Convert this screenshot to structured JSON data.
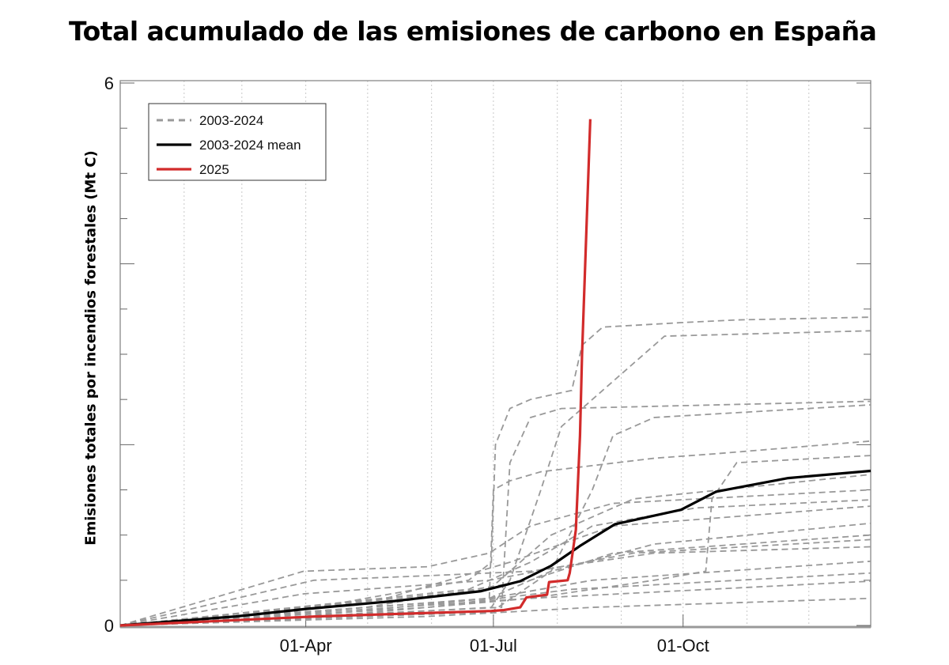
{
  "chart_data": {
    "type": "line",
    "title": "Total acumulado de las emisiones de carbono en España",
    "xlabel": "",
    "ylabel": "Emisiones totales por incendios forestales (Mt C)",
    "x_unit": "day of year",
    "xlim": [
      1,
      365
    ],
    "ylim": [
      0,
      6
    ],
    "y_tick_labels": [
      {
        "value": 6,
        "label": "6"
      },
      {
        "value": 0,
        "label": "0"
      }
    ],
    "x_ticks": [
      {
        "day": 91,
        "label": "01-Apr"
      },
      {
        "day": 182,
        "label": "01-Jul"
      },
      {
        "day": 274,
        "label": "01-Oct"
      }
    ],
    "grid": "vertical dotted monthly",
    "legend_position": "top-left",
    "legend": [
      {
        "label": "2003-2024",
        "style": "dashed",
        "color": "#999999"
      },
      {
        "label": "2003-2024 mean",
        "style": "solid",
        "color": "#000000"
      },
      {
        "label": "2025",
        "style": "solid",
        "color": "#d22b2b"
      }
    ],
    "series_2025": {
      "color": "#d22b2b",
      "points": [
        [
          1,
          0
        ],
        [
          96,
          0.1
        ],
        [
          181,
          0.16
        ],
        [
          187,
          0.17
        ],
        [
          195,
          0.2
        ],
        [
          198,
          0.31
        ],
        [
          208,
          0.34
        ],
        [
          209,
          0.48
        ],
        [
          218,
          0.5
        ],
        [
          219,
          0.58
        ],
        [
          222,
          1.06
        ],
        [
          224,
          2.1
        ],
        [
          225,
          3.0
        ],
        [
          227,
          4.3
        ],
        [
          229,
          5.6
        ]
      ]
    },
    "series_mean": {
      "color": "#000000",
      "points": [
        [
          1,
          0
        ],
        [
          57,
          0.1
        ],
        [
          90,
          0.18
        ],
        [
          134,
          0.27
        ],
        [
          176,
          0.38
        ],
        [
          195,
          0.49
        ],
        [
          210,
          0.66
        ],
        [
          224,
          0.88
        ],
        [
          241,
          1.12
        ],
        [
          273,
          1.28
        ],
        [
          290,
          1.48
        ],
        [
          325,
          1.63
        ],
        [
          365,
          1.71
        ]
      ]
    },
    "series_years": {
      "color": "#999999",
      "lines": [
        [
          [
            1,
            0
          ],
          [
            60,
            0.05
          ],
          [
            120,
            0.3
          ],
          [
            170,
            0.5
          ],
          [
            181,
            0.7
          ],
          [
            183,
            2.0
          ],
          [
            190,
            2.4
          ],
          [
            200,
            2.5
          ],
          [
            220,
            2.6
          ],
          [
            225,
            3.1
          ],
          [
            235,
            3.3
          ],
          [
            273,
            3.35
          ],
          [
            300,
            3.38
          ],
          [
            365,
            3.41
          ]
        ],
        [
          [
            1,
            0
          ],
          [
            100,
            0.1
          ],
          [
            181,
            0.2
          ],
          [
            190,
            0.5
          ],
          [
            205,
            1.5
          ],
          [
            215,
            2.2
          ],
          [
            235,
            2.6
          ],
          [
            255,
            3.0
          ],
          [
            265,
            3.2
          ],
          [
            365,
            3.26
          ]
        ],
        [
          [
            1,
            0
          ],
          [
            90,
            0.1
          ],
          [
            186,
            0.2
          ],
          [
            190,
            1.8
          ],
          [
            200,
            2.3
          ],
          [
            215,
            2.4
          ],
          [
            365,
            2.48
          ]
        ],
        [
          [
            1,
            0
          ],
          [
            181,
            0.15
          ],
          [
            210,
            0.6
          ],
          [
            230,
            1.5
          ],
          [
            240,
            2.1
          ],
          [
            260,
            2.3
          ],
          [
            365,
            2.44
          ]
        ],
        [
          [
            1,
            0
          ],
          [
            90,
            0.1
          ],
          [
            180,
            0.3
          ],
          [
            182,
            1.5
          ],
          [
            190,
            1.6
          ],
          [
            205,
            1.7
          ],
          [
            260,
            1.85
          ],
          [
            290,
            1.9
          ],
          [
            365,
            2.04
          ]
        ],
        [
          [
            1,
            0
          ],
          [
            200,
            0.3
          ],
          [
            260,
            0.5
          ],
          [
            285,
            0.6
          ],
          [
            288,
            1.4
          ],
          [
            300,
            1.8
          ],
          [
            365,
            1.88
          ]
        ],
        [
          [
            1,
            0
          ],
          [
            90,
            0.6
          ],
          [
            150,
            0.65
          ],
          [
            180,
            0.8
          ],
          [
            200,
            1.1
          ],
          [
            240,
            1.35
          ],
          [
            365,
            1.5
          ]
        ],
        [
          [
            1,
            0
          ],
          [
            170,
            0.4
          ],
          [
            200,
            0.7
          ],
          [
            230,
            1.1
          ],
          [
            280,
            1.3
          ],
          [
            365,
            1.39
          ]
        ],
        [
          [
            1,
            0
          ],
          [
            180,
            0.3
          ],
          [
            210,
            0.6
          ],
          [
            260,
            0.9
          ],
          [
            365,
            1.13
          ]
        ],
        [
          [
            1,
            0
          ],
          [
            120,
            0.2
          ],
          [
            200,
            0.5
          ],
          [
            240,
            0.8
          ],
          [
            365,
            1.0
          ]
        ],
        [
          [
            1,
            0
          ],
          [
            95,
            0.5
          ],
          [
            150,
            0.55
          ],
          [
            200,
            0.6
          ],
          [
            260,
            0.8
          ],
          [
            365,
            0.87
          ]
        ],
        [
          [
            1,
            0
          ],
          [
            180,
            0.3
          ],
          [
            230,
            0.5
          ],
          [
            365,
            0.71
          ]
        ],
        [
          [
            1,
            0
          ],
          [
            150,
            0.2
          ],
          [
            220,
            0.4
          ],
          [
            365,
            0.58
          ]
        ],
        [
          [
            1,
            0
          ],
          [
            100,
            0.1
          ],
          [
            200,
            0.3
          ],
          [
            365,
            0.49
          ]
        ],
        [
          [
            1,
            0
          ],
          [
            150,
            0.1
          ],
          [
            230,
            0.2
          ],
          [
            365,
            0.3
          ]
        ],
        [
          [
            1,
            0
          ],
          [
            180,
            0.4
          ],
          [
            210,
            1.0
          ],
          [
            250,
            1.4
          ],
          [
            365,
            1.67
          ]
        ],
        [
          [
            1,
            0
          ],
          [
            130,
            0.3
          ],
          [
            190,
            0.7
          ],
          [
            240,
            1.1
          ],
          [
            365,
            1.32
          ]
        ],
        [
          [
            1,
            0
          ],
          [
            90,
            0.35
          ],
          [
            180,
            0.5
          ],
          [
            250,
            0.8
          ],
          [
            365,
            0.95
          ]
        ]
      ]
    }
  }
}
